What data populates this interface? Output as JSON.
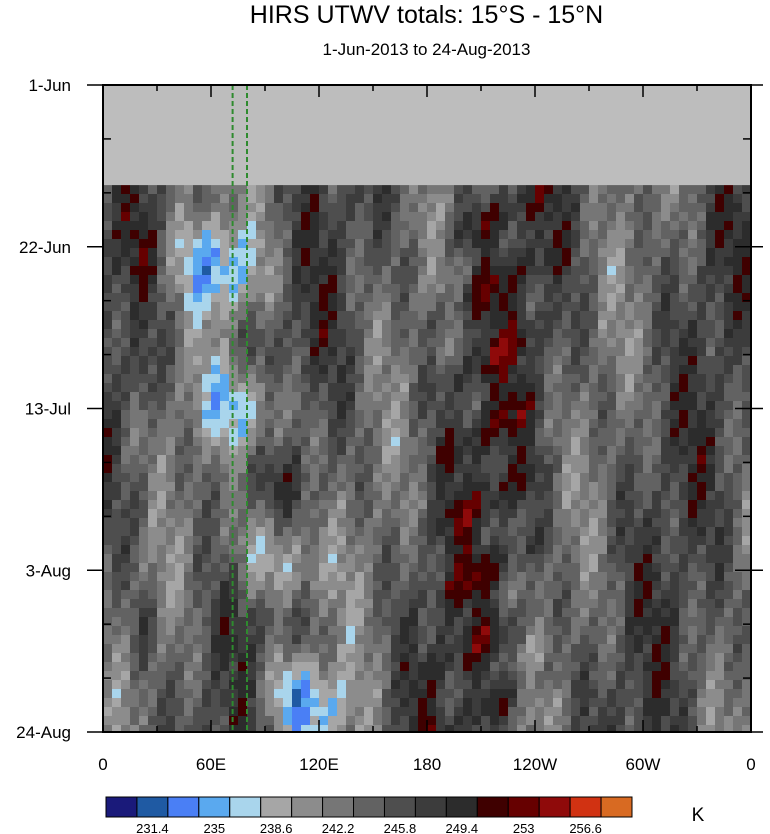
{
  "chart_data": {
    "type": "heatmap",
    "title": "HIRS UTWV totals: 15°S - 15°N",
    "subtitle": "1-Jun-2013 to 24-Aug-2013",
    "x_ticks": [
      "0",
      "60E",
      "120E",
      "180",
      "120W",
      "60W",
      "0"
    ],
    "y_ticks": [
      "1-Jun",
      "22-Jun",
      "13-Jul",
      "3-Aug",
      "24-Aug"
    ],
    "xlim": [
      0,
      360
    ],
    "ylim": [
      "2013-06-01",
      "2013-08-24"
    ],
    "missing_until": "2013-06-14",
    "missing_color": "#bdbdbd",
    "reference_lines_x": [
      72,
      80
    ],
    "reference_line_color": "#2e8b2e",
    "colorbar": {
      "labels": [
        "231.4",
        "235",
        "238.6",
        "242.2",
        "245.8",
        "249.4",
        "253",
        "256.6"
      ],
      "colors": [
        "#1a1a7a",
        "#1f5aa3",
        "#4a7ff5",
        "#5aa9ef",
        "#a9d5ec",
        "#a6a6a6",
        "#8c8c8c",
        "#767676",
        "#626262",
        "#4e4e4e",
        "#3c3c3c",
        "#2c2c2c",
        "#3f0000",
        "#660000",
        "#8f0a0a",
        "#d13212",
        "#d86a22"
      ],
      "unit": "K"
    }
  }
}
